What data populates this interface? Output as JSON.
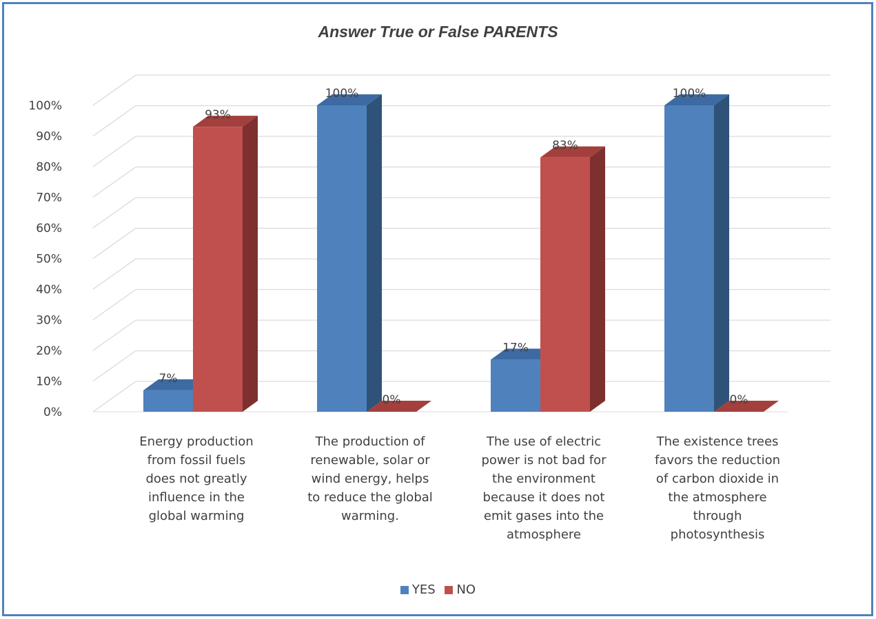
{
  "chart_data": {
    "type": "bar",
    "title": "Answer True or False PARENTS",
    "categories": [
      "Energy production from fossil fuels does not greatly influence in the global warming",
      "The production of renewable, solar or wind energy, helps to reduce the global warming.",
      "The use of electric power is not bad for the environment because it does not emit gases into the atmosphere",
      "The existence trees favors the reduction of carbon dioxide in the atmosphere through photosynthesis"
    ],
    "category_lines": [
      [
        "Energy production",
        "from fossil fuels",
        "does not greatly",
        "influence in the",
        "global warming"
      ],
      [
        "The production of",
        "renewable, solar or",
        "wind energy, helps",
        "to reduce the global",
        "warming."
      ],
      [
        "The use of electric",
        "power is not bad for",
        "the environment",
        "because it does not",
        "emit gases into the",
        "atmosphere"
      ],
      [
        "The existence trees",
        "favors the reduction",
        "of carbon dioxide in",
        "the atmosphere",
        "through",
        "photosynthesis"
      ]
    ],
    "series": [
      {
        "name": "YES",
        "values": [
          7,
          100,
          17,
          100
        ],
        "labels": [
          "7%",
          "100%",
          "17%",
          "100%"
        ],
        "color": "#4f81bd"
      },
      {
        "name": "NO",
        "values": [
          93,
          0,
          83,
          0
        ],
        "labels": [
          "93%",
          "0%",
          "83%",
          "0%"
        ],
        "color": "#c0504d"
      }
    ],
    "ylim": [
      0,
      100
    ],
    "yticks": [
      "0%",
      "10%",
      "20%",
      "30%",
      "40%",
      "50%",
      "60%",
      "70%",
      "80%",
      "90%",
      "100%"
    ],
    "grid": true,
    "legend": "bottom",
    "style": "3d-column"
  }
}
